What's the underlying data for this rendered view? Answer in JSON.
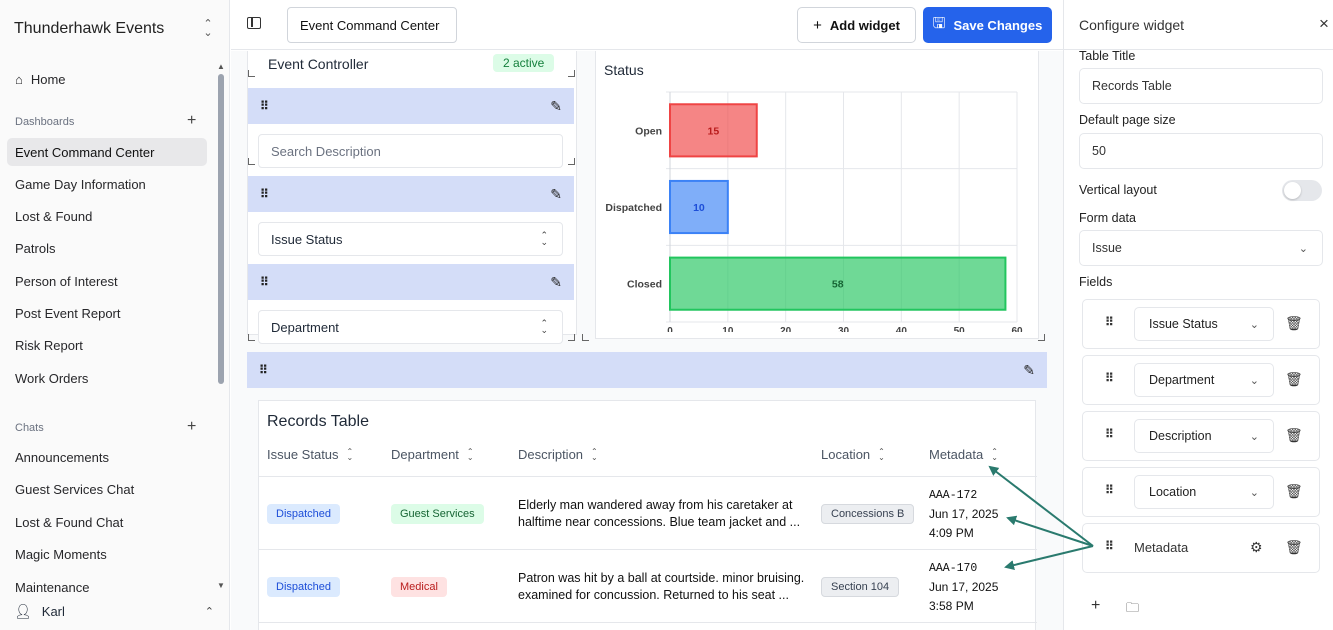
{
  "app": {
    "brand": "Thunderhawk Events"
  },
  "sidebar": {
    "home_label": "Home",
    "dashboards_label": "Dashboards",
    "dashboards": [
      "Event Command Center",
      "Game Day Information",
      "Lost & Found",
      "Patrols",
      "Person of Interest",
      "Post Event Report",
      "Risk Report",
      "Work Orders"
    ],
    "active_dashboard": "Event Command Center",
    "chats_label": "Chats",
    "chats": [
      "Announcements",
      "Guest Services Chat",
      "Lost & Found Chat",
      "Magic Moments",
      "Maintenance"
    ],
    "user": "Karl"
  },
  "topbar": {
    "dashboard_title": "Event Command Center",
    "add_widget_label": "Add widget",
    "save_label": "Save Changes"
  },
  "controller": {
    "title": "Event Controller",
    "badge": "2 active",
    "search_placeholder": "Search Description",
    "filter1": "Issue Status",
    "filter2": "Department"
  },
  "status_widget": {
    "title": "Status"
  },
  "chart_data": {
    "type": "bar",
    "orientation": "horizontal",
    "categories": [
      "Open",
      "Dispatched",
      "Closed"
    ],
    "values": [
      15,
      10,
      58
    ],
    "colors": [
      "#ef4444",
      "#3b82f6",
      "#22c55e"
    ],
    "xlim": [
      0,
      60
    ],
    "xticks": [
      0,
      10,
      20,
      30,
      40,
      50,
      60
    ],
    "grid": true
  },
  "records": {
    "title": "Records Table",
    "columns": [
      "Issue Status",
      "Department",
      "Description",
      "Location",
      "Metadata"
    ],
    "rows": [
      {
        "status": "Dispatched",
        "department": "Guest Services",
        "description_line1": "Elderly man wandered away from his caretaker at",
        "description_line2": "halftime near concessions. Blue team jacket and ...",
        "location": "Concessions B",
        "meta_id": "AAA-172",
        "meta_date": "Jun 17, 2025",
        "meta_time": "4:09 PM"
      },
      {
        "status": "Dispatched",
        "department": "Medical",
        "description_line1": "Patron was hit by a ball at courtside. minor bruising.",
        "description_line2": "examined for concussion. Returned to his seat ...",
        "location": "Section 104",
        "meta_id": "AAA-170",
        "meta_date": "Jun 17, 2025",
        "meta_time": "3:58 PM"
      }
    ]
  },
  "config": {
    "title": "Configure widget",
    "table_title_label": "Table Title",
    "table_title_value": "Records Table",
    "page_size_label": "Default page size",
    "page_size_value": "50",
    "vertical_layout_label": "Vertical layout",
    "vertical_layout_on": false,
    "form_data_label": "Form data",
    "form_data_value": "Issue",
    "fields_label": "Fields",
    "fields": [
      "Issue Status",
      "Department",
      "Description",
      "Location",
      "Metadata"
    ]
  },
  "colors": {
    "accent": "#2563eb",
    "widget_bar": "#d4ddf8",
    "arrow": "#2a7a6e"
  }
}
